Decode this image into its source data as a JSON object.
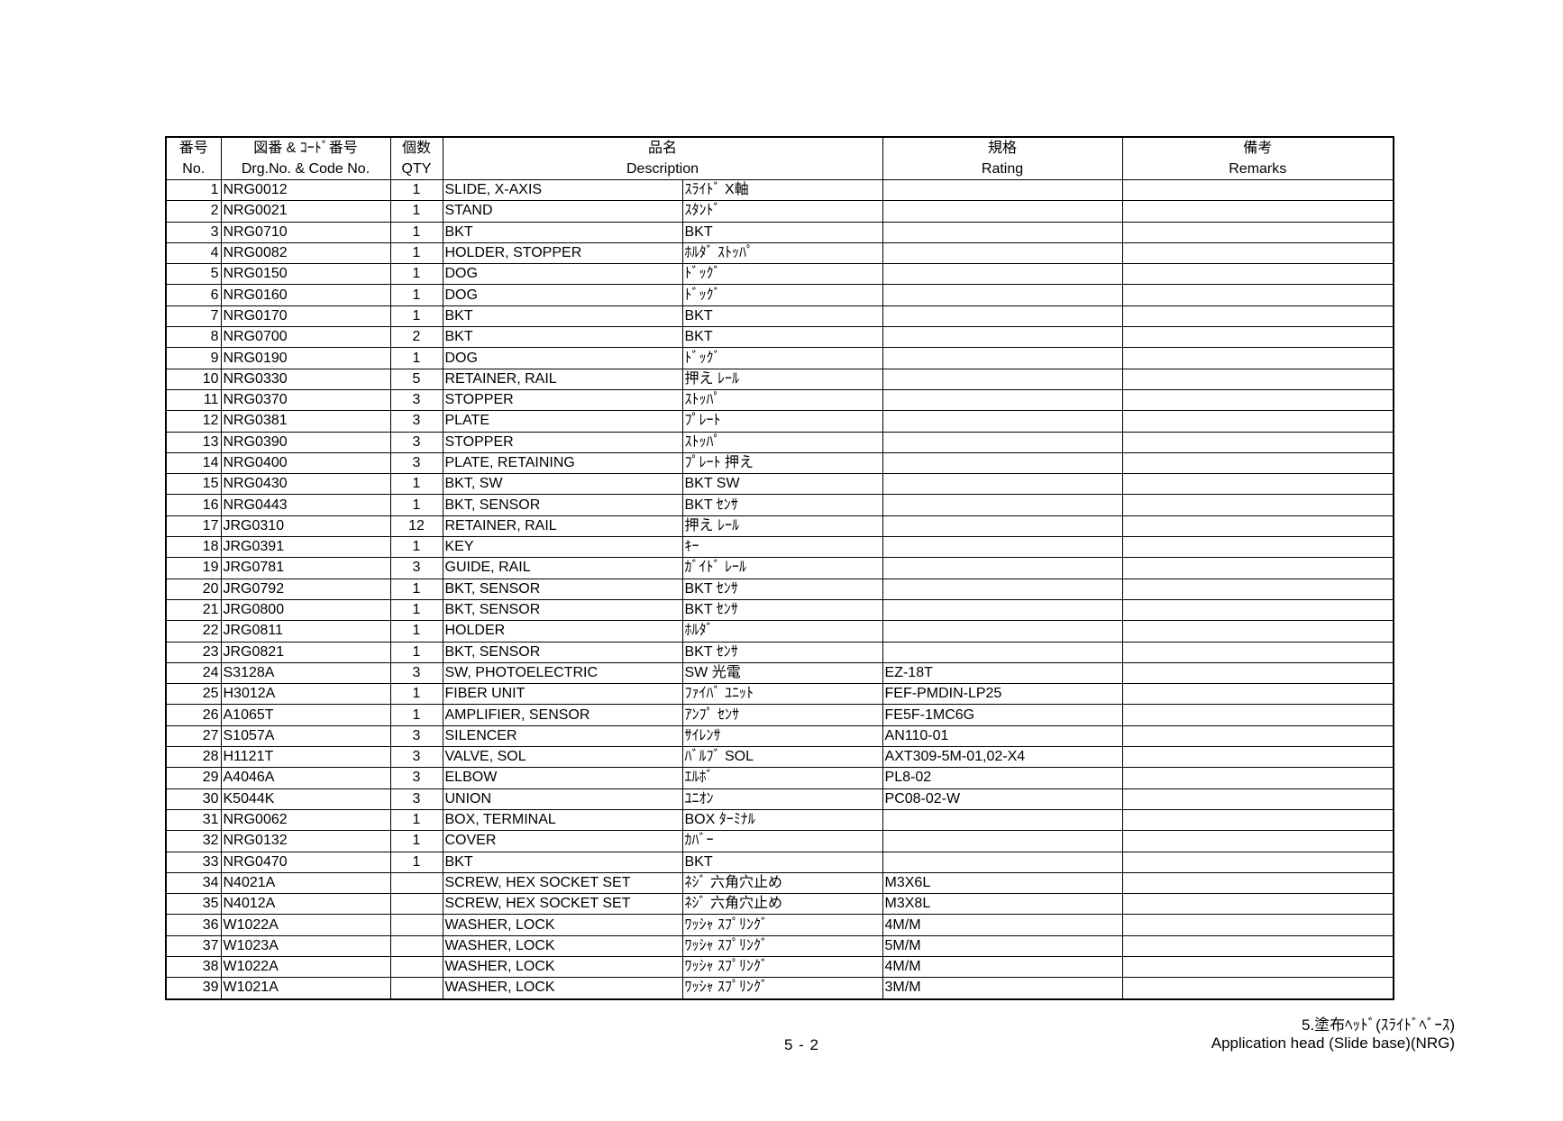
{
  "header": {
    "no_jp": "番号",
    "no_en": "No.",
    "code_jp": "図番 & ｺｰﾄﾞ番号",
    "code_en": "Drg.No. & Code No.",
    "qty_jp": "個数",
    "qty_en": "QTY",
    "desc_jp": "品名",
    "desc_en": "Description",
    "rating_jp": "規格",
    "rating_en": "Rating",
    "remarks_jp": "備考",
    "remarks_en": "Remarks"
  },
  "rows": [
    {
      "no": "1",
      "code": "NRG0012",
      "qty": "1",
      "desc_en": "SLIDE, X-AXIS",
      "desc_jp": "ｽﾗｲﾄﾞ X軸",
      "rating": "",
      "remarks": ""
    },
    {
      "no": "2",
      "code": "NRG0021",
      "qty": "1",
      "desc_en": "STAND",
      "desc_jp": "ｽﾀﾝﾄﾞ",
      "rating": "",
      "remarks": ""
    },
    {
      "no": "3",
      "code": "NRG0710",
      "qty": "1",
      "desc_en": "BKT",
      "desc_jp": "BKT",
      "rating": "",
      "remarks": ""
    },
    {
      "no": "4",
      "code": "NRG0082",
      "qty": "1",
      "desc_en": "HOLDER, STOPPER",
      "desc_jp": "ﾎﾙﾀﾞ ｽﾄｯﾊﾟ",
      "rating": "",
      "remarks": ""
    },
    {
      "no": "5",
      "code": "NRG0150",
      "qty": "1",
      "desc_en": "DOG",
      "desc_jp": "ﾄﾞｯｸﾞ",
      "rating": "",
      "remarks": ""
    },
    {
      "no": "6",
      "code": "NRG0160",
      "qty": "1",
      "desc_en": "DOG",
      "desc_jp": "ﾄﾞｯｸﾞ",
      "rating": "",
      "remarks": ""
    },
    {
      "no": "7",
      "code": "NRG0170",
      "qty": "1",
      "desc_en": "BKT",
      "desc_jp": "BKT",
      "rating": "",
      "remarks": ""
    },
    {
      "no": "8",
      "code": "NRG0700",
      "qty": "2",
      "desc_en": "BKT",
      "desc_jp": "BKT",
      "rating": "",
      "remarks": ""
    },
    {
      "no": "9",
      "code": "NRG0190",
      "qty": "1",
      "desc_en": "DOG",
      "desc_jp": "ﾄﾞｯｸﾞ",
      "rating": "",
      "remarks": ""
    },
    {
      "no": "10",
      "code": "NRG0330",
      "qty": "5",
      "desc_en": "RETAINER, RAIL",
      "desc_jp": "押え ﾚｰﾙ",
      "rating": "",
      "remarks": ""
    },
    {
      "no": "11",
      "code": "NRG0370",
      "qty": "3",
      "desc_en": "STOPPER",
      "desc_jp": "ｽﾄｯﾊﾟ",
      "rating": "",
      "remarks": ""
    },
    {
      "no": "12",
      "code": "NRG0381",
      "qty": "3",
      "desc_en": "PLATE",
      "desc_jp": "ﾌﾟﾚｰﾄ",
      "rating": "",
      "remarks": ""
    },
    {
      "no": "13",
      "code": "NRG0390",
      "qty": "3",
      "desc_en": "STOPPER",
      "desc_jp": "ｽﾄｯﾊﾟ",
      "rating": "",
      "remarks": ""
    },
    {
      "no": "14",
      "code": "NRG0400",
      "qty": "3",
      "desc_en": "PLATE, RETAINING",
      "desc_jp": "ﾌﾟﾚｰﾄ 押え",
      "rating": "",
      "remarks": ""
    },
    {
      "no": "15",
      "code": "NRG0430",
      "qty": "1",
      "desc_en": "BKT, SW",
      "desc_jp": "BKT SW",
      "rating": "",
      "remarks": ""
    },
    {
      "no": "16",
      "code": "NRG0443",
      "qty": "1",
      "desc_en": "BKT, SENSOR",
      "desc_jp": "BKT ｾﾝｻ",
      "rating": "",
      "remarks": ""
    },
    {
      "no": "17",
      "code": "JRG0310",
      "qty": "12",
      "desc_en": "RETAINER, RAIL",
      "desc_jp": "押え ﾚｰﾙ",
      "rating": "",
      "remarks": ""
    },
    {
      "no": "18",
      "code": "JRG0391",
      "qty": "1",
      "desc_en": "KEY",
      "desc_jp": "ｷｰ",
      "rating": "",
      "remarks": ""
    },
    {
      "no": "19",
      "code": "JRG0781",
      "qty": "3",
      "desc_en": "GUIDE, RAIL",
      "desc_jp": "ｶﾞｲﾄﾞ ﾚｰﾙ",
      "rating": "",
      "remarks": ""
    },
    {
      "no": "20",
      "code": "JRG0792",
      "qty": "1",
      "desc_en": "BKT, SENSOR",
      "desc_jp": "BKT ｾﾝｻ",
      "rating": "",
      "remarks": ""
    },
    {
      "no": "21",
      "code": "JRG0800",
      "qty": "1",
      "desc_en": "BKT, SENSOR",
      "desc_jp": "BKT ｾﾝｻ",
      "rating": "",
      "remarks": ""
    },
    {
      "no": "22",
      "code": "JRG0811",
      "qty": "1",
      "desc_en": "HOLDER",
      "desc_jp": "ﾎﾙﾀﾞ",
      "rating": "",
      "remarks": ""
    },
    {
      "no": "23",
      "code": "JRG0821",
      "qty": "1",
      "desc_en": "BKT, SENSOR",
      "desc_jp": "BKT ｾﾝｻ",
      "rating": "",
      "remarks": ""
    },
    {
      "no": "24",
      "code": "S3128A",
      "qty": "3",
      "desc_en": "SW, PHOTOELECTRIC",
      "desc_jp": "SW 光電",
      "rating": "EZ-18T",
      "remarks": ""
    },
    {
      "no": "25",
      "code": "H3012A",
      "qty": "1",
      "desc_en": "FIBER UNIT",
      "desc_jp": "ﾌｧｲﾊﾞ ﾕﾆｯﾄ",
      "rating": "FEF-PMDIN-LP25",
      "remarks": ""
    },
    {
      "no": "26",
      "code": "A1065T",
      "qty": "1",
      "desc_en": "AMPLIFIER, SENSOR",
      "desc_jp": "ｱﾝﾌﾟ ｾﾝｻ",
      "rating": "FE5F-1MC6G",
      "remarks": ""
    },
    {
      "no": "27",
      "code": "S1057A",
      "qty": "3",
      "desc_en": "SILENCER",
      "desc_jp": "ｻｲﾚﾝｻ",
      "rating": "AN110-01",
      "remarks": ""
    },
    {
      "no": "28",
      "code": "H1121T",
      "qty": "3",
      "desc_en": "VALVE, SOL",
      "desc_jp": "ﾊﾞﾙﾌﾞ SOL",
      "rating": "AXT309-5M-01,02-X4",
      "remarks": ""
    },
    {
      "no": "29",
      "code": "A4046A",
      "qty": "3",
      "desc_en": "ELBOW",
      "desc_jp": "ｴﾙﾎﾞ",
      "rating": "PL8-02",
      "remarks": ""
    },
    {
      "no": "30",
      "code": "K5044K",
      "qty": "3",
      "desc_en": "UNION",
      "desc_jp": "ﾕﾆｵﾝ",
      "rating": "PC08-02-W",
      "remarks": ""
    },
    {
      "no": "31",
      "code": "NRG0062",
      "qty": "1",
      "desc_en": "BOX, TERMINAL",
      "desc_jp": "BOX ﾀｰﾐﾅﾙ",
      "rating": "",
      "remarks": ""
    },
    {
      "no": "32",
      "code": "NRG0132",
      "qty": "1",
      "desc_en": "COVER",
      "desc_jp": "ｶﾊﾞｰ",
      "rating": "",
      "remarks": ""
    },
    {
      "no": "33",
      "code": "NRG0470",
      "qty": "1",
      "desc_en": "BKT",
      "desc_jp": "BKT",
      "rating": "",
      "remarks": ""
    },
    {
      "no": "34",
      "code": "N4021A",
      "qty": "",
      "desc_en": "SCREW, HEX SOCKET SET",
      "desc_jp": "ﾈｼﾞ 六角穴止め",
      "rating": "M3X6L",
      "remarks": ""
    },
    {
      "no": "35",
      "code": "N4012A",
      "qty": "",
      "desc_en": "SCREW, HEX SOCKET SET",
      "desc_jp": "ﾈｼﾞ 六角穴止め",
      "rating": "M3X8L",
      "remarks": ""
    },
    {
      "no": "36",
      "code": "W1022A",
      "qty": "",
      "desc_en": "WASHER, LOCK",
      "desc_jp": "ﾜｯｼｬ ｽﾌﾟﾘﾝｸﾞ",
      "rating": "4M/M",
      "remarks": ""
    },
    {
      "no": "37",
      "code": "W1023A",
      "qty": "",
      "desc_en": "WASHER, LOCK",
      "desc_jp": "ﾜｯｼｬ ｽﾌﾟﾘﾝｸﾞ",
      "rating": "5M/M",
      "remarks": ""
    },
    {
      "no": "38",
      "code": "W1022A",
      "qty": "",
      "desc_en": "WASHER, LOCK",
      "desc_jp": "ﾜｯｼｬ ｽﾌﾟﾘﾝｸﾞ",
      "rating": "4M/M",
      "remarks": ""
    },
    {
      "no": "39",
      "code": "W1021A",
      "qty": "",
      "desc_en": "WASHER, LOCK",
      "desc_jp": "ﾜｯｼｬ ｽﾌﾟﾘﾝｸﾞ",
      "rating": "3M/M",
      "remarks": ""
    }
  ],
  "footer": {
    "page": "5 - 2",
    "section_jp": "5.塗布ﾍｯﾄﾞ(ｽﾗｲﾄﾞﾍﾞｰｽ)",
    "section_en": "Application head (Slide base)(NRG)"
  }
}
